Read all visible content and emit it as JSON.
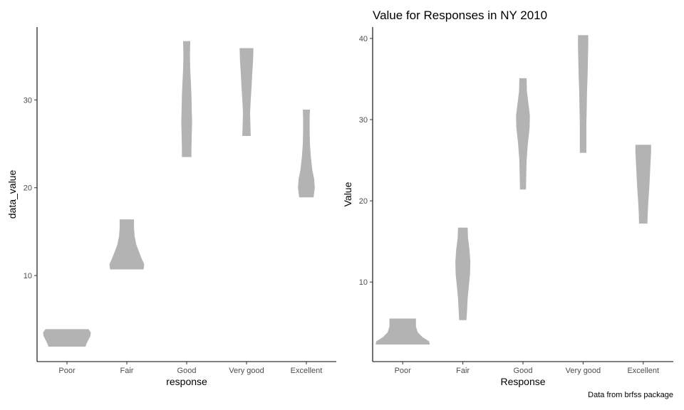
{
  "violin_color": "#b3b3b3",
  "caption": "Data from brfss package",
  "chart_data": [
    {
      "type": "violin",
      "title": "",
      "xlabel": "response",
      "ylabel": "data_value",
      "categories": [
        "Poor",
        "Fair",
        "Good",
        "Very good",
        "Excellent"
      ],
      "yticks": [
        10,
        20,
        30
      ],
      "ylim": [
        0.2,
        38.3
      ],
      "grid": false,
      "violins": [
        {
          "category": "Poor",
          "min": 1.9,
          "max": 3.9,
          "profile": [
            [
              1.9,
              0.62
            ],
            [
              2.3,
              0.66
            ],
            [
              2.7,
              0.72
            ],
            [
              3.1,
              0.78
            ],
            [
              3.5,
              0.8
            ],
            [
              3.9,
              0.72
            ]
          ]
        },
        {
          "category": "Fair",
          "min": 10.7,
          "max": 16.4,
          "profile": [
            [
              10.7,
              0.56
            ],
            [
              11.3,
              0.58
            ],
            [
              11.9,
              0.5
            ],
            [
              12.6,
              0.42
            ],
            [
              13.5,
              0.32
            ],
            [
              14.5,
              0.26
            ],
            [
              15.4,
              0.24
            ],
            [
              16.4,
              0.24
            ]
          ]
        },
        {
          "category": "Good",
          "min": 23.5,
          "max": 36.7,
          "profile": [
            [
              23.5,
              0.16
            ],
            [
              24.5,
              0.16
            ],
            [
              26.0,
              0.17
            ],
            [
              27.5,
              0.18
            ],
            [
              29.0,
              0.17
            ],
            [
              30.5,
              0.16
            ],
            [
              32.0,
              0.14
            ],
            [
              33.5,
              0.12
            ],
            [
              35.0,
              0.11
            ],
            [
              36.7,
              0.12
            ]
          ]
        },
        {
          "category": "Very good",
          "min": 25.9,
          "max": 35.9,
          "profile": [
            [
              25.9,
              0.14
            ],
            [
              27.0,
              0.13
            ],
            [
              28.5,
              0.12
            ],
            [
              30.0,
              0.14
            ],
            [
              31.5,
              0.17
            ],
            [
              33.0,
              0.19
            ],
            [
              34.5,
              0.22
            ],
            [
              35.9,
              0.23
            ]
          ]
        },
        {
          "category": "Excellent",
          "min": 18.9,
          "max": 28.9,
          "profile": [
            [
              18.9,
              0.24
            ],
            [
              20.0,
              0.28
            ],
            [
              21.0,
              0.26
            ],
            [
              22.0,
              0.2
            ],
            [
              23.5,
              0.15
            ],
            [
              25.0,
              0.12
            ],
            [
              26.5,
              0.11
            ],
            [
              28.0,
              0.11
            ],
            [
              28.9,
              0.12
            ]
          ]
        }
      ]
    },
    {
      "type": "violin",
      "title": "Value for Responses in NY 2010",
      "xlabel": "Response",
      "ylabel": "Value",
      "categories": [
        "Poor",
        "Fair",
        "Good",
        "Very good",
        "Excellent"
      ],
      "yticks": [
        10,
        20,
        30,
        40
      ],
      "ylim": [
        0.2,
        41.4
      ],
      "grid": false,
      "violins": [
        {
          "category": "Poor",
          "min": 2.3,
          "max": 5.5,
          "profile": [
            [
              2.3,
              0.9
            ],
            [
              2.7,
              0.88
            ],
            [
              3.2,
              0.66
            ],
            [
              3.8,
              0.5
            ],
            [
              4.5,
              0.44
            ],
            [
              5.0,
              0.44
            ],
            [
              5.5,
              0.44
            ]
          ]
        },
        {
          "category": "Fair",
          "min": 5.3,
          "max": 16.7,
          "profile": [
            [
              5.3,
              0.12
            ],
            [
              6.5,
              0.14
            ],
            [
              8.0,
              0.16
            ],
            [
              9.5,
              0.2
            ],
            [
              11.0,
              0.24
            ],
            [
              12.5,
              0.25
            ],
            [
              14.0,
              0.22
            ],
            [
              15.5,
              0.17
            ],
            [
              16.7,
              0.16
            ]
          ]
        },
        {
          "category": "Good",
          "min": 21.4,
          "max": 35.1,
          "profile": [
            [
              21.4,
              0.1
            ],
            [
              23.0,
              0.11
            ],
            [
              25.0,
              0.12
            ],
            [
              27.0,
              0.16
            ],
            [
              29.0,
              0.22
            ],
            [
              30.5,
              0.23
            ],
            [
              32.0,
              0.18
            ],
            [
              33.5,
              0.13
            ],
            [
              35.1,
              0.12
            ]
          ]
        },
        {
          "category": "Very good",
          "min": 25.9,
          "max": 40.4,
          "profile": [
            [
              25.9,
              0.11
            ],
            [
              27.5,
              0.11
            ],
            [
              29.5,
              0.11
            ],
            [
              31.5,
              0.12
            ],
            [
              33.5,
              0.13
            ],
            [
              35.5,
              0.15
            ],
            [
              37.5,
              0.16
            ],
            [
              39.0,
              0.17
            ],
            [
              40.4,
              0.17
            ]
          ]
        },
        {
          "category": "Excellent",
          "min": 17.2,
          "max": 26.9,
          "profile": [
            [
              17.2,
              0.14
            ],
            [
              18.5,
              0.15
            ],
            [
              20.0,
              0.17
            ],
            [
              21.5,
              0.2
            ],
            [
              23.0,
              0.22
            ],
            [
              24.5,
              0.24
            ],
            [
              26.0,
              0.26
            ],
            [
              26.9,
              0.26
            ]
          ]
        }
      ]
    }
  ]
}
